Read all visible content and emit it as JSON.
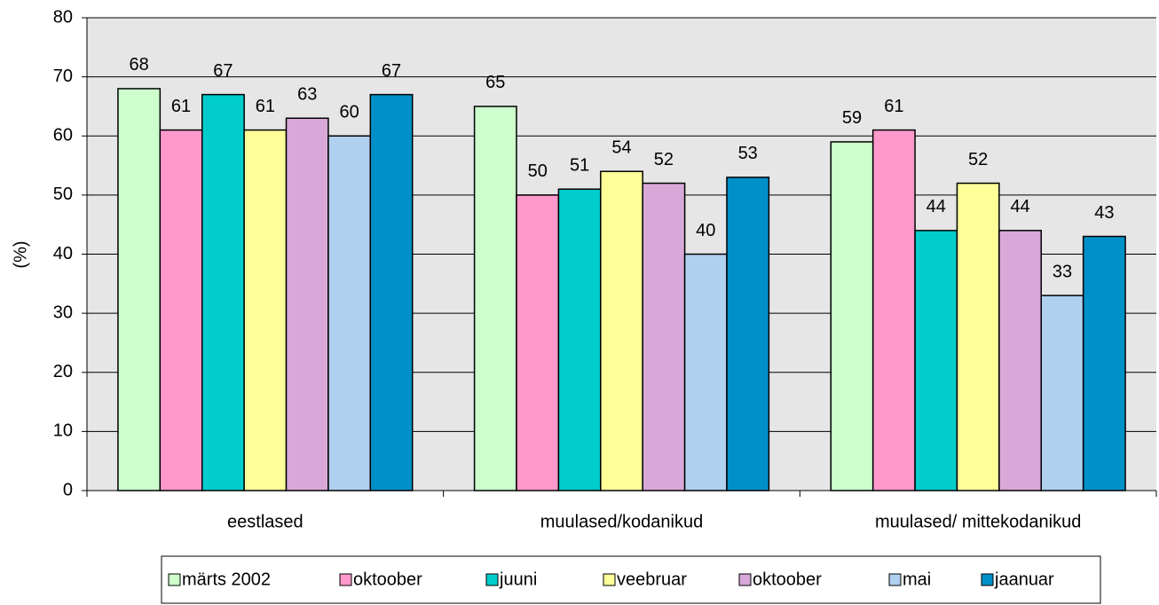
{
  "chart_data": {
    "type": "bar",
    "y_label": "(%)",
    "categories": [
      "eestlased",
      "muulased/kodanikud",
      "muulased/ mittekodanikud"
    ],
    "series": [
      {
        "name": "märts 2002",
        "color": "#ccffcc",
        "values": [
          68,
          65,
          59
        ]
      },
      {
        "name": "oktoober",
        "color": "#ff99cc",
        "values": [
          61,
          50,
          61
        ]
      },
      {
        "name": "juuni",
        "color": "#00cccc",
        "values": [
          67,
          51,
          44
        ]
      },
      {
        "name": "veebruar",
        "color": "#ffff99",
        "values": [
          61,
          54,
          52
        ]
      },
      {
        "name": "oktoober",
        "color": "#d8a8d8",
        "values": [
          63,
          52,
          44
        ]
      },
      {
        "name": "mai",
        "color": "#b0d0f0",
        "values": [
          60,
          40,
          33
        ]
      },
      {
        "name": "jaanuar",
        "color": "#0090c8",
        "values": [
          67,
          53,
          43
        ]
      }
    ],
    "ylim": [
      0,
      80
    ],
    "yticks": [
      0,
      10,
      20,
      30,
      40,
      50,
      60,
      70,
      80
    ],
    "grid": true,
    "legend": "bottom"
  }
}
